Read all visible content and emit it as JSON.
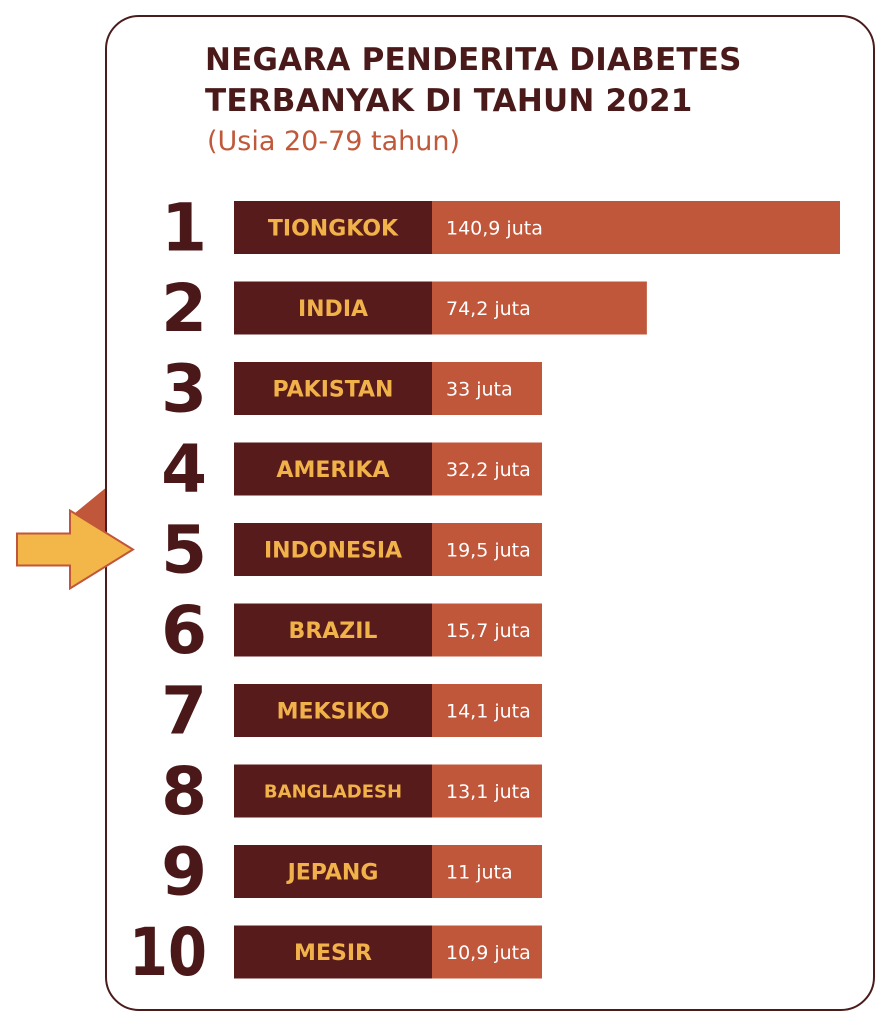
{
  "title_line1": "NEGARA PENDERITA DIABETES",
  "title_line2": "TERBANYAK DI TAHUN 2021",
  "subtitle": "(Usia 20-79 tahun)",
  "colors": {
    "label_bg": "#581b1b",
    "bar": "#c0563a",
    "country_text": "#f1b24a",
    "rank_text": "#4a1818",
    "arrow": "#f3b649",
    "arrow_border": "#c0563a"
  },
  "highlight_icon": "arrow-right-icon",
  "chart_data": {
    "type": "bar",
    "orientation": "horizontal",
    "title": "NEGARA PENDERITA DIABETES TERBANYAK DI TAHUN 2021",
    "subtitle": "(Usia 20-79 tahun)",
    "unit": "juta",
    "highlight_rank": "5",
    "rows": [
      {
        "rank": "1",
        "country": "TIONGKOK",
        "value": 140.9,
        "value_label": "140,9 juta"
      },
      {
        "rank": "2",
        "country": "INDIA",
        "value": 74.2,
        "value_label": "74,2 juta"
      },
      {
        "rank": "3",
        "country": "PAKISTAN",
        "value": 33,
        "value_label": "33 juta"
      },
      {
        "rank": "4",
        "country": "AMERIKA",
        "value": 32.2,
        "value_label": "32,2 juta"
      },
      {
        "rank": "5",
        "country": "INDONESIA",
        "value": 19.5,
        "value_label": "19,5 juta"
      },
      {
        "rank": "6",
        "country": "BRAZIL",
        "value": 15.7,
        "value_label": "15,7 juta"
      },
      {
        "rank": "7",
        "country": "MEKSIKO",
        "value": 14.1,
        "value_label": "14,1 juta"
      },
      {
        "rank": "8",
        "country": "BANGLADESH",
        "value": 13.1,
        "value_label": "13,1 juta"
      },
      {
        "rank": "9",
        "country": "JEPANG",
        "value": 11,
        "value_label": "11 juta"
      },
      {
        "rank": "10",
        "country": "MESIR",
        "value": 10.9,
        "value_label": "10,9 juta"
      }
    ]
  }
}
